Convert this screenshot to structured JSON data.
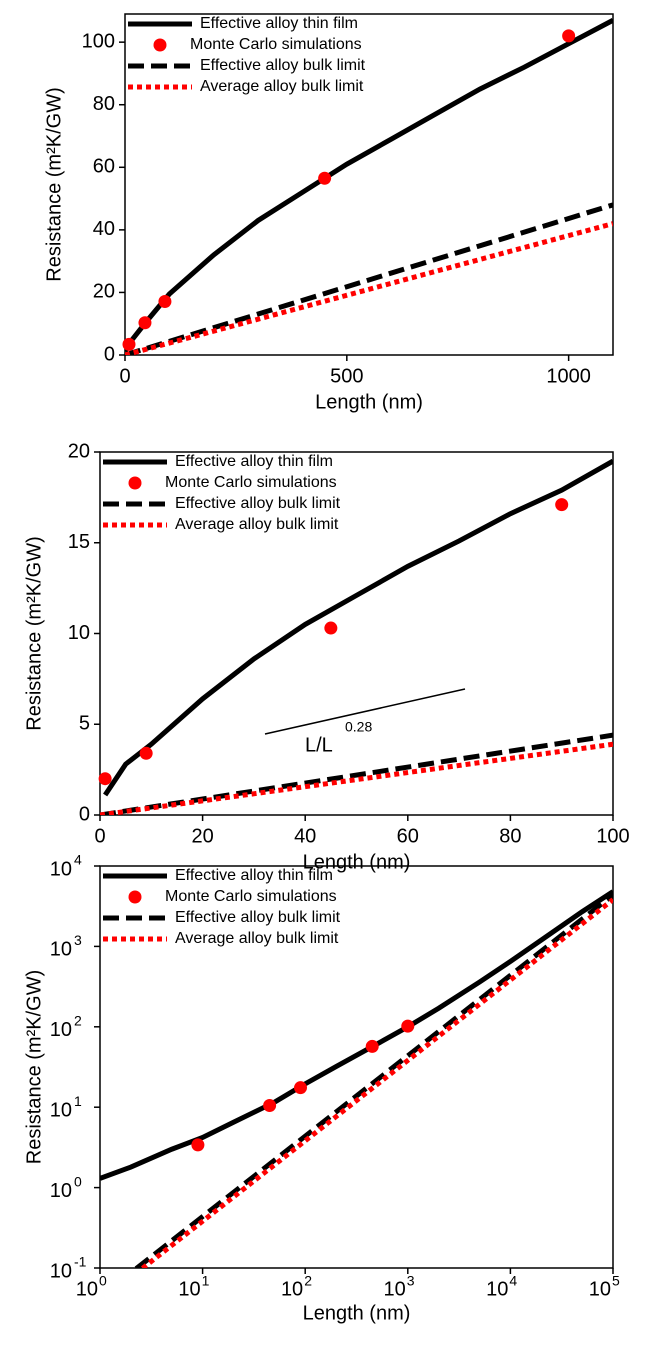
{
  "chart_data": [
    {
      "type": "line",
      "xlabel": "Length (nm)",
      "ylabel": "Resistance (m²K/GW)",
      "xlim": [
        0,
        1100
      ],
      "ylim": [
        0,
        109
      ],
      "xticks": [
        0,
        500,
        1000
      ],
      "yticks": [
        0,
        20,
        40,
        60,
        80,
        100
      ],
      "legend": "upper left",
      "series": [
        {
          "name": "Effective alloy thin film",
          "color": "#000000",
          "style": "solid",
          "x": [
            0,
            10,
            50,
            100,
            200,
            300,
            400,
            500,
            600,
            700,
            800,
            900,
            1000,
            1100
          ],
          "values": [
            1.2,
            3.8,
            11,
            19.5,
            32,
            43,
            52,
            61,
            69,
            77,
            85,
            92,
            99.5,
            107
          ]
        },
        {
          "name": "Monte Carlo simulations",
          "color": "#ff0000",
          "style": "markers",
          "x": [
            9,
            45,
            90,
            450,
            1000
          ],
          "values": [
            3.4,
            10.3,
            17.1,
            56.5,
            102
          ]
        },
        {
          "name": "Effective alloy bulk limit",
          "color": "#000000",
          "style": "dashed",
          "x": [
            0,
            1100
          ],
          "values": [
            0,
            48
          ]
        },
        {
          "name": "Average alloy bulk limit",
          "color": "#ff0000",
          "style": "dotted",
          "x": [
            0,
            1100
          ],
          "values": [
            0,
            42
          ]
        }
      ]
    },
    {
      "type": "line",
      "xlabel": "Length (nm)",
      "ylabel": "Resistance (m²K/GW)",
      "xlim": [
        0,
        100
      ],
      "ylim": [
        0,
        20
      ],
      "xticks": [
        0,
        20,
        40,
        60,
        80,
        100
      ],
      "yticks": [
        0,
        5,
        10,
        15,
        20
      ],
      "legend": "upper left",
      "series": [
        {
          "name": "Effective alloy thin film",
          "color": "#000000",
          "style": "solid",
          "x": [
            1,
            5,
            10,
            20,
            30,
            40,
            50,
            60,
            70,
            80,
            90,
            100
          ],
          "values": [
            1.1,
            2.8,
            3.9,
            6.4,
            8.6,
            10.5,
            12.1,
            13.7,
            15.1,
            16.6,
            17.9,
            19.5
          ]
        },
        {
          "name": "Monte Carlo simulations",
          "color": "#ff0000",
          "style": "markers",
          "x": [
            1,
            9,
            45,
            90
          ],
          "values": [
            2,
            3.4,
            10.3,
            17.1
          ]
        },
        {
          "name": "Effective alloy bulk limit",
          "color": "#000000",
          "style": "dashed",
          "x": [
            0,
            100
          ],
          "values": [
            0,
            4.4
          ]
        },
        {
          "name": "Average alloy bulk limit",
          "color": "#ff0000",
          "style": "dotted",
          "x": [
            0,
            100
          ],
          "values": [
            0,
            3.9
          ]
        }
      ]
    },
    {
      "type": "line",
      "xlabel": "Length (nm)",
      "ylabel": "Resistance (m²K/GW)",
      "xlog": true,
      "ylog": true,
      "xlim": [
        1,
        100000
      ],
      "ylim": [
        0.1,
        10000
      ],
      "xticks": [
        {
          "value": 1,
          "label": "10",
          "exponent": "0"
        },
        {
          "value": 10,
          "label": "10",
          "exponent": "1"
        },
        {
          "value": 100,
          "label": "10",
          "exponent": "2"
        },
        {
          "value": 1000,
          "label": "10",
          "exponent": "3"
        },
        {
          "value": 10000,
          "label": "10",
          "exponent": "4"
        },
        {
          "value": 100000,
          "label": "10",
          "exponent": "5"
        }
      ],
      "yticks": [
        {
          "value": 0.1,
          "label": "10",
          "exponent": "-1"
        },
        {
          "value": 1,
          "label": "10",
          "exponent": "0"
        },
        {
          "value": 10,
          "label": "10",
          "exponent": "1"
        },
        {
          "value": 100,
          "label": "10",
          "exponent": "2"
        },
        {
          "value": 1000,
          "label": "10",
          "exponent": "3"
        },
        {
          "value": 10000,
          "label": "10",
          "exponent": "4"
        }
      ],
      "legend": "upper left",
      "annotation": {
        "text": "L/L",
        "exponent": "0.28"
      },
      "series": [
        {
          "name": "Effective alloy thin film",
          "color": "#000000",
          "style": "solid",
          "x": [
            1,
            2,
            5,
            10,
            20,
            50,
            100,
            200,
            500,
            1000,
            2000,
            5000,
            10000,
            20000,
            50000,
            100000
          ],
          "values": [
            1.3,
            1.8,
            3,
            4.2,
            6.5,
            11.5,
            19.5,
            32,
            61,
            100,
            170,
            360,
            650,
            1200,
            2700,
            4800
          ]
        },
        {
          "name": "Monte Carlo simulations",
          "color": "#ff0000",
          "style": "markers",
          "x": [
            9,
            45,
            90,
            450,
            1000
          ],
          "values": [
            3.4,
            10.5,
            17.5,
            57,
            102
          ]
        },
        {
          "name": "Effective alloy bulk limit",
          "color": "#000000",
          "style": "dashed",
          "x": [
            1,
            100000
          ],
          "values": [
            0.0436,
            4360
          ]
        },
        {
          "name": "Average alloy bulk limit",
          "color": "#ff0000",
          "style": "dotted",
          "x": [
            1,
            100000
          ],
          "values": [
            0.0382,
            3820
          ]
        }
      ]
    }
  ]
}
